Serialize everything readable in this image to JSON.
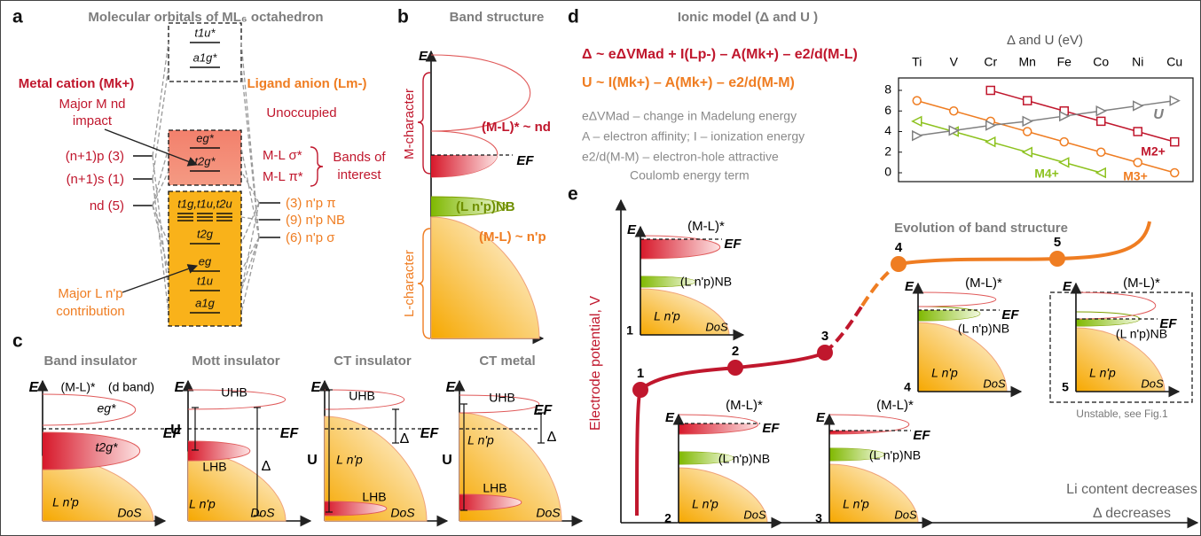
{
  "panel_a": {
    "letter": "a",
    "title": "Molecular orbitals of ML₆ octahedron",
    "left_heading": "Metal cation (Mk+)",
    "right_heading": "Ligand anion (Lm-)",
    "metal_levels": [
      "(n+1)p (3)",
      "(n+1)s (1)",
      "nd (5)"
    ],
    "ligand_levels": [
      "(3) n'p π",
      "(9) n'p NB",
      "(6) n'p σ"
    ],
    "orbitals": [
      "t1u*",
      "a1g*",
      "eg*",
      "t2g*",
      "t1g,t1u,t2u",
      "t2g",
      "eg",
      "t1u",
      "a1g"
    ],
    "unoccupied": "Unoccupied",
    "ml_sigma": "M-L σ*",
    "ml_pi": "M-L π*",
    "bands_of_interest": [
      "Bands of",
      "interest"
    ],
    "major_m": [
      "Major M nd",
      "impact"
    ],
    "major_l": [
      "Major L n'p",
      "contribution"
    ]
  },
  "panel_b": {
    "letter": "b",
    "title": "Band structure",
    "axis_e": "E",
    "axis_dos": "DoS",
    "m_character": "M-character",
    "l_character": "L-character",
    "antibonding": "(M-L)* ~ nd",
    "nonbonding": "(L n'p)NB",
    "bonding": "(M-L) ~ n'p",
    "fermi": "EF"
  },
  "panel_c": {
    "letter": "c",
    "panels": [
      {
        "title": "Band insulator",
        "labels": [
          "E",
          "(M-L)*",
          "(d band)",
          "eg*",
          "EF",
          "t2g*",
          "L n'p",
          "DoS"
        ]
      },
      {
        "title": "Mott insulator",
        "labels": [
          "E",
          "UHB",
          "U",
          "EF",
          "LHB",
          "Δ",
          "L n'p",
          "DoS"
        ]
      },
      {
        "title": "CT insulator",
        "labels": [
          "E",
          "UHB",
          "Δ",
          "EF",
          "U",
          "L n'p",
          "LHB",
          "DoS"
        ]
      },
      {
        "title": "CT metal",
        "labels": [
          "E",
          "UHB",
          "EF",
          "Δ",
          "U",
          "L n'p",
          "LHB",
          "DoS"
        ]
      }
    ]
  },
  "panel_d": {
    "letter": "d",
    "title": "Ionic model (Δ and U )",
    "equations": [
      "Δ ~ eΔVMad + I(Lp-) – A(Mk+) – e2/d(M-L)",
      "U ~ I(Mk+) – A(Mk+) – e2/d(M-M)"
    ],
    "notes": [
      "eΔVMad – change in Madelung energy",
      "A – electron affinity; I – ionization energy",
      "e2/d(M-M) – electron-hole attractive",
      "Coulomb energy term"
    ]
  },
  "chart_data": {
    "type": "line",
    "title": "Δ and U (eV)",
    "categories": [
      "Ti",
      "V",
      "Cr",
      "Mn",
      "Fe",
      "Co",
      "Ni",
      "Cu"
    ],
    "ylim": [
      0,
      8.8
    ],
    "yticks": [
      0,
      2,
      4,
      6,
      8
    ],
    "grid": false,
    "series": [
      {
        "name": "M2+",
        "color": "#c0172d",
        "marker": "square",
        "values": [
          null,
          null,
          8,
          7,
          6,
          5,
          4,
          3
        ]
      },
      {
        "name": "M3+",
        "color": "#ef7d22",
        "marker": "circle",
        "values": [
          7,
          6,
          5,
          4,
          3,
          2,
          1,
          0
        ]
      },
      {
        "name": "M4+",
        "color": "#8dc21f",
        "marker": "triangle-left",
        "values": [
          5,
          4,
          3,
          2,
          1,
          0,
          null,
          null
        ]
      },
      {
        "name": "U",
        "color": "#808080",
        "marker": "triangle-right",
        "values": [
          3.6,
          4.1,
          4.6,
          5.0,
          5.5,
          6.0,
          6.5,
          7.0
        ]
      }
    ]
  },
  "panel_e": {
    "letter": "e",
    "y_axis": "Electrode potential, V",
    "title": "Evolution of band structure",
    "points": [
      "1",
      "2",
      "3",
      "4",
      "5"
    ],
    "x_notes": [
      "Li content decreases",
      "Δ decreases"
    ],
    "unstable": "Unstable, see Fig.1",
    "insets": [
      {
        "e": "E",
        "ml": "(M-L)*",
        "ef": "EF",
        "nb": "(L n'p)NB",
        "lnp": "L n'p",
        "dos": "DoS",
        "num": "1"
      },
      {
        "e": "E",
        "ml": "(M-L)*",
        "ef": "EF",
        "nb": "(L n'p)NB",
        "lnp": "L n'p",
        "dos": "DoS",
        "num": "2"
      },
      {
        "e": "E",
        "ml": "(M-L)*",
        "ef": "EF",
        "nb": "(L n'p)NB",
        "lnp": "L n'p",
        "dos": "DoS",
        "num": "3"
      },
      {
        "e": "E",
        "ml": "(M-L)*",
        "ef": "EF",
        "nb": "(L n'p)NB",
        "lnp": "L n'p",
        "dos": "DoS",
        "num": "4"
      },
      {
        "e": "E",
        "ml": "(M-L)*",
        "ef": "EF",
        "nb": "(L n'p)NB",
        "lnp": "L n'p",
        "dos": "DoS",
        "num": "5"
      }
    ]
  }
}
